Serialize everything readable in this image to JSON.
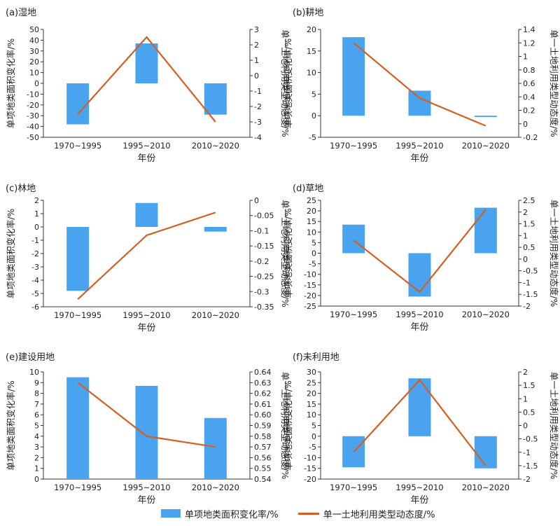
{
  "colors": {
    "bar": "#4aa3ee",
    "line": "#d45f22",
    "axis": "#333333",
    "text": "#222222"
  },
  "legend": {
    "bar_label": "单项地类面积变化率/%",
    "line_label": "单一土地利用类型动态度/%"
  },
  "chart_data": [
    {
      "type": "bar",
      "title": "(a)湿地",
      "xlabel": "年份",
      "ylabel": "单项地类面积变化率/%",
      "y2label": "单一土地利用类型动态度/%",
      "categories": [
        "1970~1995",
        "1995~2010",
        "2010~2020"
      ],
      "left_ticks": [
        "50",
        "40",
        "30",
        "20",
        "10",
        "0",
        "-10",
        "-20",
        "-30",
        "-40",
        "-50"
      ],
      "right_ticks": [
        "3",
        "2",
        "1",
        "0",
        "-1",
        "-2",
        "-3",
        "-4"
      ],
      "ylim": [
        -50,
        50
      ],
      "y2lim": [
        -4,
        3
      ],
      "series": [
        {
          "name": "单项地类面积变化率/%",
          "type": "bar",
          "axis": "left",
          "values": [
            -38,
            37,
            -29
          ]
        },
        {
          "name": "单一土地利用类型动态度/%",
          "type": "line",
          "axis": "right",
          "values": [
            -2.5,
            2.5,
            -3.0
          ]
        }
      ]
    },
    {
      "type": "bar",
      "title": "(b)耕地",
      "xlabel": "年份",
      "ylabel": "单项地类面积变化率/%",
      "y2label": "单一土地利用类型动态度/%",
      "categories": [
        "1970~1995",
        "1995~2010",
        "2010~2020"
      ],
      "left_ticks": [
        "20",
        "15",
        "10",
        "5",
        "0",
        "-5"
      ],
      "right_ticks": [
        "1.4",
        "1.2",
        "1",
        "0.8",
        "0.6",
        "0.4",
        "0.2",
        "0",
        "-0.2"
      ],
      "ylim": [
        -5,
        20
      ],
      "y2lim": [
        -0.2,
        1.4
      ],
      "series": [
        {
          "name": "单项地类面积变化率/%",
          "type": "bar",
          "axis": "left",
          "values": [
            18.2,
            5.8,
            -0.3
          ]
        },
        {
          "name": "单一土地利用类型动态度/%",
          "type": "line",
          "axis": "right",
          "values": [
            1.2,
            0.38,
            -0.03
          ]
        }
      ]
    },
    {
      "type": "bar",
      "title": "(c)林地",
      "xlabel": "年份",
      "ylabel": "单项地类面积变化率/%",
      "y2label": "单一土地利用类型动态度/%",
      "categories": [
        "1970~1995",
        "1995~2010",
        "2010~2020"
      ],
      "left_ticks": [
        "2",
        "1",
        "0",
        "-1",
        "-2",
        "-3",
        "-4",
        "-5",
        "-6"
      ],
      "right_ticks": [
        "0",
        "-0.05",
        "-0.1",
        "-0.15",
        "-0.2",
        "-0.25",
        "-0.3",
        "-0.35"
      ],
      "ylim": [
        -6,
        2
      ],
      "y2lim": [
        -0.35,
        0
      ],
      "series": [
        {
          "name": "单项地类面积变化率/%",
          "type": "bar",
          "axis": "left",
          "values": [
            -4.8,
            1.8,
            -0.35
          ]
        },
        {
          "name": "单一土地利用类型动态度/%",
          "type": "line",
          "axis": "right",
          "values": [
            -0.325,
            -0.115,
            -0.04
          ]
        }
      ]
    },
    {
      "type": "bar",
      "title": "(d)草地",
      "xlabel": "年份",
      "ylabel": "单项地类面积变化率/%",
      "y2label": "单一土地利用类型动态度/%",
      "categories": [
        "1970~1995",
        "1995~2010",
        "2010~2020"
      ],
      "left_ticks": [
        "25",
        "20",
        "15",
        "10",
        "5",
        "0",
        "-5",
        "-10",
        "-15",
        "-20",
        "-25"
      ],
      "right_ticks": [
        "2.5",
        "2",
        "1.5",
        "1",
        "0.5",
        "0",
        "-0.5",
        "-1",
        "-1.5",
        "-2"
      ],
      "ylim": [
        -25,
        25
      ],
      "y2lim": [
        -2,
        2.5
      ],
      "series": [
        {
          "name": "单项地类面积变化率/%",
          "type": "bar",
          "axis": "left",
          "values": [
            13.5,
            -20.5,
            21.5
          ]
        },
        {
          "name": "单一土地利用类型动态度/%",
          "type": "line",
          "axis": "right",
          "values": [
            0.8,
            -1.4,
            2.1
          ]
        }
      ]
    },
    {
      "type": "bar",
      "title": "(e)建设用地",
      "xlabel": "年份",
      "ylabel": "单项地类面积变化率/%",
      "y2label": "单一土地利用类型动态度/%",
      "categories": [
        "1970~1995",
        "1995~2010",
        "2010~2020"
      ],
      "left_ticks": [
        "10",
        "9",
        "8",
        "7",
        "6",
        "5",
        "4",
        "3",
        "2",
        "1",
        "0"
      ],
      "right_ticks": [
        "0.64",
        "0.63",
        "0.62",
        "0.61",
        "0.60",
        "0.59",
        "0.58",
        "0.57",
        "0.56",
        "0.55",
        "0.54"
      ],
      "ylim": [
        0,
        10
      ],
      "y2lim": [
        0.54,
        0.64
      ],
      "series": [
        {
          "name": "单项地类面积变化率/%",
          "type": "bar",
          "axis": "left",
          "values": [
            9.5,
            8.7,
            5.7
          ]
        },
        {
          "name": "单一土地利用类型动态度/%",
          "type": "line",
          "axis": "right",
          "values": [
            0.63,
            0.58,
            0.57
          ]
        }
      ]
    },
    {
      "type": "bar",
      "title": "(f)未利用地",
      "xlabel": "年份",
      "ylabel": "单项地类面积变化率/%",
      "y2label": "单一土地利用类型动态度/%",
      "categories": [
        "1970~1995",
        "1995~2010",
        "2010~2020"
      ],
      "left_ticks": [
        "30",
        "25",
        "20",
        "15",
        "10",
        "5",
        "0",
        "-5",
        "-10",
        "-15",
        "-20"
      ],
      "right_ticks": [
        "2",
        "1.5",
        "1",
        "0.5",
        "0",
        "-0.5",
        "-1",
        "-1.5",
        "-2"
      ],
      "ylim": [
        -20,
        30
      ],
      "y2lim": [
        -2,
        2
      ],
      "series": [
        {
          "name": "单项地类面积变化率/%",
          "type": "bar",
          "axis": "left",
          "values": [
            -14.5,
            27,
            -15
          ]
        },
        {
          "name": "单一土地利用类型动态度/%",
          "type": "line",
          "axis": "right",
          "values": [
            -1.0,
            1.7,
            -1.5
          ]
        }
      ]
    }
  ]
}
